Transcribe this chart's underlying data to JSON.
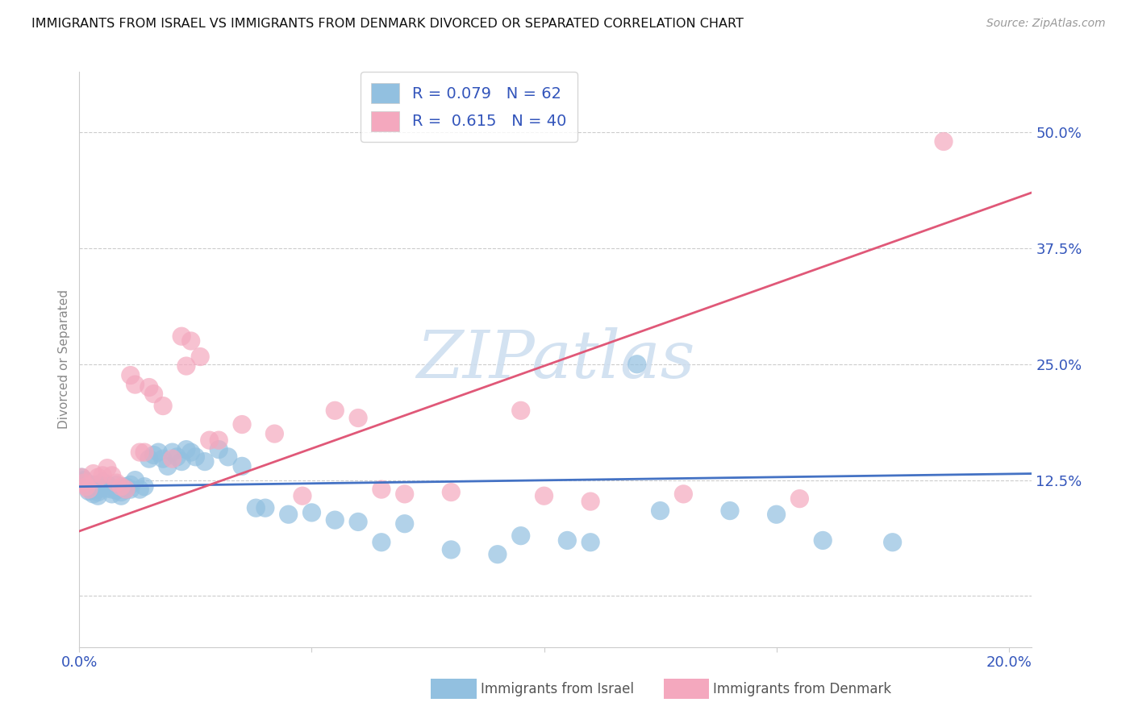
{
  "title": "IMMIGRANTS FROM ISRAEL VS IMMIGRANTS FROM DENMARK DIVORCED OR SEPARATED CORRELATION CHART",
  "source": "Source: ZipAtlas.com",
  "ylabel": "Divorced or Separated",
  "legend_label_israel": "Immigrants from Israel",
  "legend_label_denmark": "Immigrants from Denmark",
  "R_israel": "0.079",
  "N_israel": "62",
  "R_denmark": "0.615",
  "N_denmark": "40",
  "color_israel": "#92c0e0",
  "color_denmark": "#f4a8be",
  "color_reg_israel": "#4472c4",
  "color_reg_denmark": "#e05878",
  "color_tick": "#3355bb",
  "color_legend_text": "#3355bb",
  "watermark_text": "ZIPatlas",
  "watermark_color": "#ccddef",
  "xlim": [
    0.0,
    0.205
  ],
  "ylim": [
    -0.055,
    0.565
  ],
  "ytick_vals": [
    0.0,
    0.125,
    0.25,
    0.375,
    0.5
  ],
  "ytick_labels": [
    "",
    "12.5%",
    "25.0%",
    "37.5%",
    "50.0%"
  ],
  "xtick_vals": [
    0.0,
    0.05,
    0.1,
    0.15,
    0.2
  ],
  "xtick_labels": [
    "0.0%",
    "",
    "",
    "",
    "20.0%"
  ],
  "reg_israel": [
    0.0,
    0.118,
    0.205,
    0.132
  ],
  "reg_denmark": [
    0.0,
    0.07,
    0.205,
    0.435
  ],
  "israel_x": [
    0.0005,
    0.001,
    0.0015,
    0.002,
    0.002,
    0.0025,
    0.003,
    0.003,
    0.004,
    0.004,
    0.004,
    0.005,
    0.005,
    0.006,
    0.006,
    0.007,
    0.007,
    0.008,
    0.008,
    0.009,
    0.009,
    0.01,
    0.01,
    0.011,
    0.011,
    0.012,
    0.013,
    0.014,
    0.015,
    0.016,
    0.017,
    0.018,
    0.019,
    0.02,
    0.021,
    0.022,
    0.023,
    0.024,
    0.025,
    0.027,
    0.03,
    0.032,
    0.035,
    0.038,
    0.04,
    0.045,
    0.05,
    0.055,
    0.06,
    0.065,
    0.07,
    0.08,
    0.09,
    0.095,
    0.105,
    0.11,
    0.12,
    0.125,
    0.14,
    0.15,
    0.16,
    0.175
  ],
  "israel_y": [
    0.128,
    0.125,
    0.122,
    0.118,
    0.113,
    0.115,
    0.12,
    0.11,
    0.115,
    0.112,
    0.108,
    0.118,
    0.123,
    0.12,
    0.116,
    0.115,
    0.11,
    0.114,
    0.12,
    0.108,
    0.112,
    0.115,
    0.118,
    0.12,
    0.115,
    0.125,
    0.115,
    0.118,
    0.148,
    0.152,
    0.155,
    0.148,
    0.14,
    0.155,
    0.15,
    0.145,
    0.158,
    0.155,
    0.15,
    0.145,
    0.158,
    0.15,
    0.14,
    0.095,
    0.095,
    0.088,
    0.09,
    0.082,
    0.08,
    0.058,
    0.078,
    0.05,
    0.045,
    0.065,
    0.06,
    0.058,
    0.25,
    0.092,
    0.092,
    0.088,
    0.06,
    0.058
  ],
  "denmark_x": [
    0.0005,
    0.001,
    0.0015,
    0.002,
    0.003,
    0.004,
    0.005,
    0.006,
    0.007,
    0.008,
    0.009,
    0.01,
    0.011,
    0.012,
    0.013,
    0.014,
    0.015,
    0.016,
    0.018,
    0.02,
    0.022,
    0.023,
    0.024,
    0.026,
    0.028,
    0.03,
    0.035,
    0.042,
    0.048,
    0.055,
    0.06,
    0.065,
    0.07,
    0.08,
    0.095,
    0.1,
    0.11,
    0.13,
    0.155,
    0.186
  ],
  "denmark_y": [
    0.128,
    0.122,
    0.118,
    0.115,
    0.132,
    0.128,
    0.13,
    0.138,
    0.13,
    0.122,
    0.118,
    0.115,
    0.238,
    0.228,
    0.155,
    0.155,
    0.225,
    0.218,
    0.205,
    0.148,
    0.28,
    0.248,
    0.275,
    0.258,
    0.168,
    0.168,
    0.185,
    0.175,
    0.108,
    0.2,
    0.192,
    0.115,
    0.11,
    0.112,
    0.2,
    0.108,
    0.102,
    0.11,
    0.105,
    0.49
  ]
}
